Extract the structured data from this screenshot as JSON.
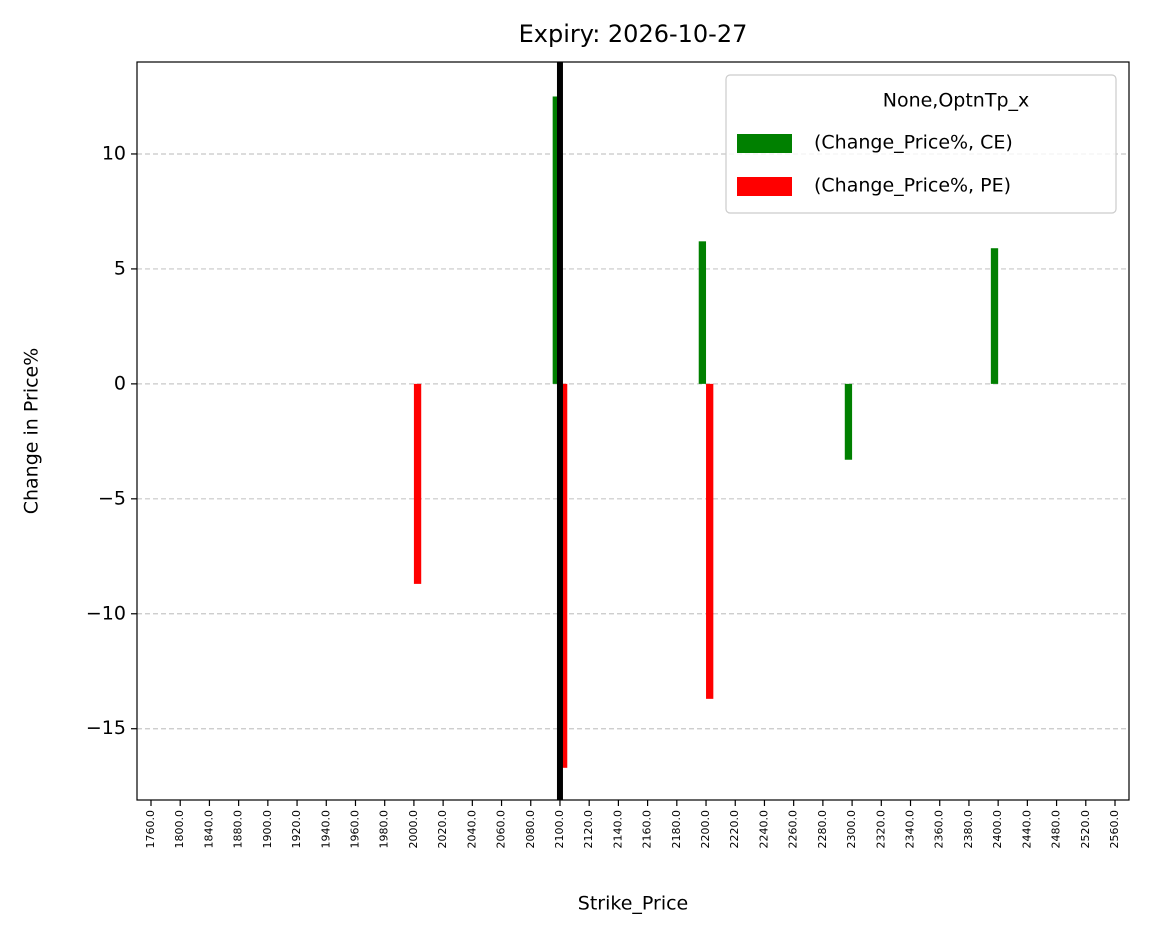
{
  "chart_data": {
    "type": "bar",
    "title": "Expiry: 2026-10-27",
    "x_label": "Strike_Price",
    "y_label": "Change in Price%",
    "categories": [
      "1760.0",
      "1800.0",
      "1840.0",
      "1880.0",
      "1900.0",
      "1920.0",
      "1940.0",
      "1960.0",
      "1980.0",
      "2000.0",
      "2020.0",
      "2040.0",
      "2060.0",
      "2080.0",
      "2100.0",
      "2120.0",
      "2140.0",
      "2160.0",
      "2180.0",
      "2200.0",
      "2220.0",
      "2240.0",
      "2260.0",
      "2280.0",
      "2300.0",
      "2320.0",
      "2340.0",
      "2360.0",
      "2380.0",
      "2400.0",
      "2440.0",
      "2480.0",
      "2520.0",
      "2560.0"
    ],
    "series": [
      {
        "name": "(Change_Price%, CE)",
        "color": "#008000",
        "values": [
          null,
          null,
          null,
          null,
          null,
          null,
          null,
          null,
          null,
          null,
          null,
          null,
          null,
          null,
          12.5,
          null,
          null,
          null,
          null,
          6.2,
          null,
          null,
          null,
          null,
          -3.3,
          null,
          null,
          null,
          null,
          5.9,
          null,
          null,
          null,
          null
        ]
      },
      {
        "name": "(Change_Price%, PE)",
        "color": "#ff0000",
        "values": [
          null,
          null,
          null,
          null,
          null,
          null,
          null,
          null,
          null,
          -8.7,
          null,
          null,
          null,
          null,
          -16.7,
          null,
          null,
          null,
          null,
          -13.7,
          null,
          null,
          null,
          null,
          null,
          null,
          null,
          null,
          null,
          null,
          null,
          null,
          null,
          null
        ]
      }
    ],
    "legend_title": "None,OptnTp_x",
    "legend": "upper right",
    "ylim": [
      -18.1,
      14.0
    ],
    "yticks": [
      {
        "value": -15,
        "label": "−15"
      },
      {
        "value": -10,
        "label": "−10"
      },
      {
        "value": -5,
        "label": "−5"
      },
      0,
      5,
      10
    ],
    "grid": true,
    "vline_x": 14,
    "vline_color": "#000000"
  }
}
